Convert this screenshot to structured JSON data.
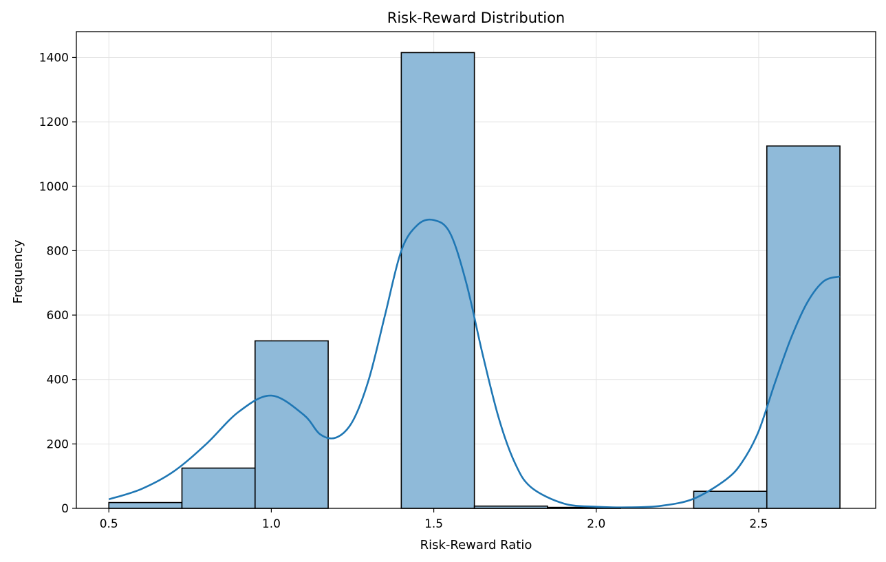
{
  "chart_data": {
    "type": "bar",
    "title": "Risk-Reward Distribution",
    "xlabel": "Risk-Reward Ratio",
    "ylabel": "Frequency",
    "xlim": [
      0.4,
      2.86
    ],
    "ylim": [
      0,
      1480
    ],
    "xticks": [
      0.5,
      1.0,
      1.5,
      2.0,
      2.5
    ],
    "xtick_labels": [
      "0.5",
      "1.0",
      "1.5",
      "2.0",
      "2.5"
    ],
    "yticks": [
      0,
      200,
      400,
      600,
      800,
      1000,
      1200,
      1400
    ],
    "ytick_labels": [
      "0",
      "200",
      "400",
      "600",
      "800",
      "1000",
      "1200",
      "1400"
    ],
    "grid": true,
    "bins": [
      {
        "x0": 0.5,
        "x1": 0.725,
        "count": 18
      },
      {
        "x0": 0.725,
        "x1": 0.95,
        "count": 125
      },
      {
        "x0": 0.95,
        "x1": 1.175,
        "count": 520
      },
      {
        "x0": 1.175,
        "x1": 1.4,
        "count": 0
      },
      {
        "x0": 1.4,
        "x1": 1.625,
        "count": 1415
      },
      {
        "x0": 1.625,
        "x1": 1.85,
        "count": 7
      },
      {
        "x0": 1.85,
        "x1": 2.075,
        "count": 3
      },
      {
        "x0": 2.075,
        "x1": 2.3,
        "count": 0
      },
      {
        "x0": 2.3,
        "x1": 2.525,
        "count": 53
      },
      {
        "x0": 2.525,
        "x1": 2.75,
        "count": 1125
      }
    ],
    "kde": {
      "x": [
        0.5,
        0.6,
        0.7,
        0.8,
        0.9,
        1.0,
        1.1,
        1.15,
        1.2,
        1.25,
        1.3,
        1.35,
        1.4,
        1.45,
        1.5,
        1.55,
        1.6,
        1.65,
        1.7,
        1.75,
        1.8,
        1.9,
        2.0,
        2.1,
        2.2,
        2.3,
        2.4,
        2.45,
        2.5,
        2.55,
        2.6,
        2.65,
        2.7,
        2.75
      ],
      "y": [
        28,
        60,
        115,
        200,
        300,
        350,
        290,
        230,
        220,
        270,
        400,
        600,
        800,
        880,
        895,
        855,
        700,
        480,
        280,
        140,
        65,
        15,
        5,
        3,
        8,
        30,
        90,
        145,
        240,
        390,
        530,
        640,
        705,
        720
      ]
    },
    "colors": {
      "bar_fill": "#8fbad9",
      "bar_edge": "#000000",
      "kde_line": "#1f77b4",
      "grid": "#e3e3e3"
    }
  }
}
